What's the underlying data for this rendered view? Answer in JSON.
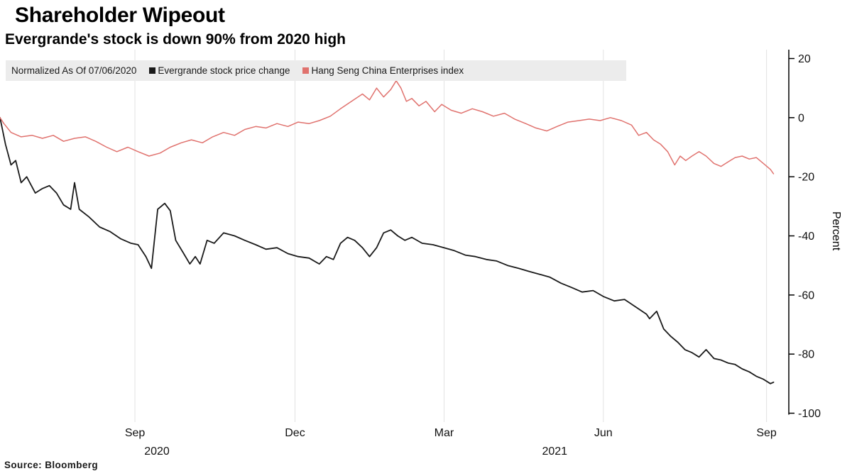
{
  "header": {
    "title": "Shareholder Wipeout",
    "subtitle": "Evergrande's stock is down 90% from 2020 high"
  },
  "legend": {
    "note": "Normalized As Of 07/06/2020",
    "items": [
      {
        "label": "Evergrande stock price change",
        "color": "#1a1a1a"
      },
      {
        "label": "Hang Seng China Enterprises index",
        "color": "#e0726e"
      }
    ]
  },
  "footer": {
    "source": "Source:  Bloomberg"
  },
  "chart_data": {
    "type": "line",
    "title": "Shareholder Wipeout",
    "subtitle": "Evergrande's stock is down 90% from 2020 high",
    "xlabel": "",
    "ylabel": "Percent",
    "ylim": [
      -103,
      23
    ],
    "yticks": [
      20,
      0,
      -20,
      -40,
      -60,
      -80,
      -100
    ],
    "grid": "vertical",
    "grid_color": "#e2e2e2",
    "axis_color": "#000000",
    "legend_position": "top",
    "x_encoding": "fraction of plot width, Jul 2020 to Sep 2021",
    "xticks": [
      {
        "label": "Sep",
        "pos": 0.172
      },
      {
        "label": "Dec",
        "pos": 0.376
      },
      {
        "label": "Mar",
        "pos": 0.566
      },
      {
        "label": "Jun",
        "pos": 0.769
      },
      {
        "label": "Sep",
        "pos": 0.977
      }
    ],
    "year_labels": [
      {
        "label": "2020",
        "pos": 0.2
      },
      {
        "label": "2021",
        "pos": 0.707
      }
    ],
    "series": [
      {
        "name": "Evergrande stock price change",
        "color": "#1a1a1a",
        "points": [
          [
            0,
            0
          ],
          [
            0.007,
            -9
          ],
          [
            0.014,
            -16
          ],
          [
            0.02,
            -14.5
          ],
          [
            0.027,
            -22
          ],
          [
            0.034,
            -20
          ],
          [
            0.045,
            -25.5
          ],
          [
            0.054,
            -24
          ],
          [
            0.063,
            -23
          ],
          [
            0.072,
            -25.5
          ],
          [
            0.081,
            -29.5
          ],
          [
            0.09,
            -31
          ],
          [
            0.095,
            -22
          ],
          [
            0.101,
            -31
          ],
          [
            0.113,
            -33.5
          ],
          [
            0.127,
            -37
          ],
          [
            0.14,
            -38.5
          ],
          [
            0.154,
            -41
          ],
          [
            0.167,
            -42.5
          ],
          [
            0.176,
            -43
          ],
          [
            0.186,
            -47
          ],
          [
            0.193,
            -51
          ],
          [
            0.201,
            -31
          ],
          [
            0.21,
            -29
          ],
          [
            0.217,
            -31.5
          ],
          [
            0.224,
            -41.5
          ],
          [
            0.233,
            -45.5
          ],
          [
            0.242,
            -49.5
          ],
          [
            0.249,
            -47
          ],
          [
            0.255,
            -49.5
          ],
          [
            0.264,
            -41.5
          ],
          [
            0.273,
            -42.5
          ],
          [
            0.285,
            -39
          ],
          [
            0.299,
            -40
          ],
          [
            0.312,
            -41.5
          ],
          [
            0.326,
            -43
          ],
          [
            0.339,
            -44.5
          ],
          [
            0.353,
            -44
          ],
          [
            0.367,
            -46
          ],
          [
            0.38,
            -47
          ],
          [
            0.394,
            -47.5
          ],
          [
            0.407,
            -49.5
          ],
          [
            0.416,
            -47
          ],
          [
            0.425,
            -48
          ],
          [
            0.434,
            -42.5
          ],
          [
            0.443,
            -40.5
          ],
          [
            0.452,
            -41.5
          ],
          [
            0.462,
            -44
          ],
          [
            0.471,
            -47
          ],
          [
            0.48,
            -44
          ],
          [
            0.489,
            -39
          ],
          [
            0.498,
            -38
          ],
          [
            0.507,
            -40
          ],
          [
            0.516,
            -41.5
          ],
          [
            0.525,
            -40.5
          ],
          [
            0.538,
            -42.5
          ],
          [
            0.552,
            -43
          ],
          [
            0.566,
            -44
          ],
          [
            0.579,
            -45
          ],
          [
            0.593,
            -46.5
          ],
          [
            0.606,
            -47
          ],
          [
            0.62,
            -48
          ],
          [
            0.633,
            -48.5
          ],
          [
            0.647,
            -50
          ],
          [
            0.661,
            -51
          ],
          [
            0.674,
            -52
          ],
          [
            0.688,
            -53
          ],
          [
            0.701,
            -54
          ],
          [
            0.715,
            -56
          ],
          [
            0.729,
            -57.5
          ],
          [
            0.742,
            -59
          ],
          [
            0.756,
            -58.5
          ],
          [
            0.769,
            -60.5
          ],
          [
            0.783,
            -62
          ],
          [
            0.796,
            -61.5
          ],
          [
            0.81,
            -64
          ],
          [
            0.824,
            -66.5
          ],
          [
            0.828,
            -68
          ],
          [
            0.837,
            -65.5
          ],
          [
            0.846,
            -71.5
          ],
          [
            0.855,
            -74
          ],
          [
            0.864,
            -76
          ],
          [
            0.873,
            -78.5
          ],
          [
            0.882,
            -79.5
          ],
          [
            0.891,
            -81
          ],
          [
            0.9,
            -78.5
          ],
          [
            0.91,
            -81.5
          ],
          [
            0.919,
            -82
          ],
          [
            0.928,
            -83
          ],
          [
            0.937,
            -83.5
          ],
          [
            0.946,
            -85
          ],
          [
            0.955,
            -86
          ],
          [
            0.964,
            -87.5
          ],
          [
            0.973,
            -88.5
          ],
          [
            0.982,
            -90
          ],
          [
            0.986,
            -89.5
          ]
        ]
      },
      {
        "name": "Hang Seng China Enterprises index",
        "color": "#e0726e",
        "points": [
          [
            0,
            0
          ],
          [
            0.005,
            -2
          ],
          [
            0.014,
            -5
          ],
          [
            0.027,
            -6.5
          ],
          [
            0.041,
            -6
          ],
          [
            0.054,
            -7
          ],
          [
            0.068,
            -6
          ],
          [
            0.081,
            -8
          ],
          [
            0.095,
            -7
          ],
          [
            0.109,
            -6.5
          ],
          [
            0.122,
            -8
          ],
          [
            0.136,
            -10
          ],
          [
            0.149,
            -11.5
          ],
          [
            0.163,
            -10
          ],
          [
            0.176,
            -11.5
          ],
          [
            0.19,
            -13
          ],
          [
            0.204,
            -12
          ],
          [
            0.217,
            -10
          ],
          [
            0.231,
            -8.5
          ],
          [
            0.244,
            -7.5
          ],
          [
            0.258,
            -8.5
          ],
          [
            0.271,
            -6.5
          ],
          [
            0.285,
            -5
          ],
          [
            0.299,
            -6
          ],
          [
            0.312,
            -4
          ],
          [
            0.326,
            -3
          ],
          [
            0.339,
            -3.5
          ],
          [
            0.353,
            -2
          ],
          [
            0.367,
            -3
          ],
          [
            0.38,
            -1.5
          ],
          [
            0.394,
            -2
          ],
          [
            0.407,
            -1
          ],
          [
            0.421,
            0.5
          ],
          [
            0.434,
            3
          ],
          [
            0.448,
            5.5
          ],
          [
            0.462,
            8
          ],
          [
            0.471,
            6
          ],
          [
            0.48,
            10
          ],
          [
            0.489,
            7
          ],
          [
            0.498,
            9.5
          ],
          [
            0.505,
            12.5
          ],
          [
            0.511,
            10
          ],
          [
            0.518,
            5.5
          ],
          [
            0.525,
            6.5
          ],
          [
            0.534,
            4
          ],
          [
            0.543,
            5.5
          ],
          [
            0.554,
            2
          ],
          [
            0.563,
            4.5
          ],
          [
            0.575,
            2.5
          ],
          [
            0.588,
            1.5
          ],
          [
            0.602,
            3
          ],
          [
            0.615,
            2
          ],
          [
            0.629,
            0.5
          ],
          [
            0.643,
            1.5
          ],
          [
            0.656,
            -0.5
          ],
          [
            0.67,
            -2
          ],
          [
            0.683,
            -3.5
          ],
          [
            0.697,
            -4.5
          ],
          [
            0.71,
            -3
          ],
          [
            0.724,
            -1.5
          ],
          [
            0.738,
            -1
          ],
          [
            0.751,
            -0.5
          ],
          [
            0.765,
            -1
          ],
          [
            0.778,
            0
          ],
          [
            0.792,
            -1
          ],
          [
            0.805,
            -2.5
          ],
          [
            0.814,
            -6
          ],
          [
            0.824,
            -5
          ],
          [
            0.833,
            -7.5
          ],
          [
            0.842,
            -9
          ],
          [
            0.851,
            -11.5
          ],
          [
            0.86,
            -16
          ],
          [
            0.867,
            -13
          ],
          [
            0.874,
            -14.5
          ],
          [
            0.882,
            -13
          ],
          [
            0.891,
            -11.5
          ],
          [
            0.9,
            -13
          ],
          [
            0.91,
            -15.5
          ],
          [
            0.919,
            -16.5
          ],
          [
            0.928,
            -15
          ],
          [
            0.937,
            -13.5
          ],
          [
            0.946,
            -13
          ],
          [
            0.955,
            -14
          ],
          [
            0.964,
            -13.5
          ],
          [
            0.973,
            -15.5
          ],
          [
            0.982,
            -17.5
          ],
          [
            0.986,
            -19
          ]
        ]
      }
    ]
  }
}
